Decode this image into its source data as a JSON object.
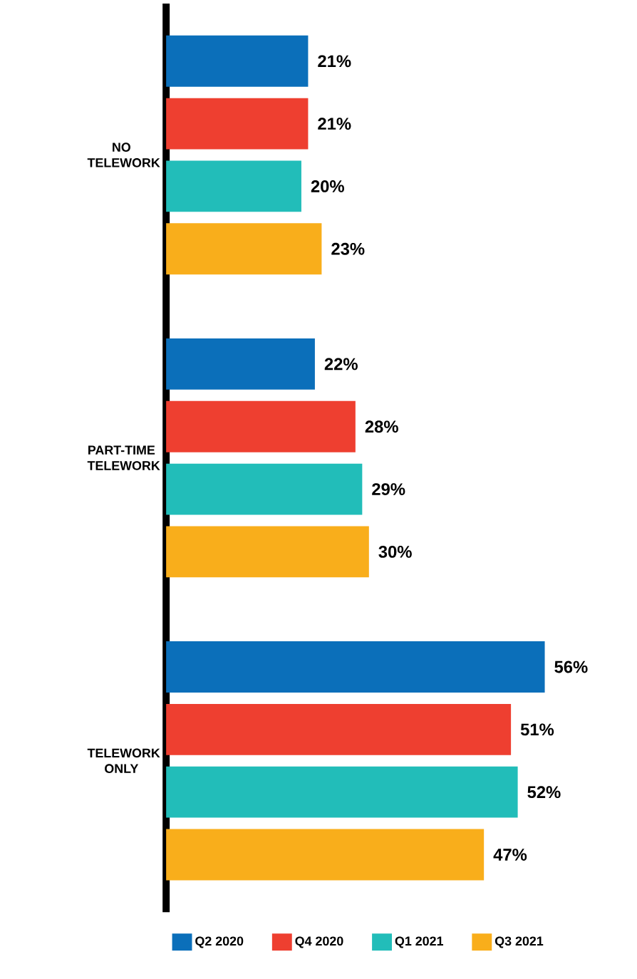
{
  "chart_data": {
    "type": "bar",
    "orientation": "horizontal",
    "categories": [
      "NO TELEWORK",
      "PART-TIME TELEWORK",
      "TELEWORK ONLY"
    ],
    "series": [
      {
        "name": "Q2 2020",
        "color": "#0b6fba",
        "values": [
          21,
          22,
          56
        ],
        "value_labels": [
          "21%",
          "22%",
          "56%"
        ]
      },
      {
        "name": "Q4 2020",
        "color": "#ee3f30",
        "values": [
          21,
          28,
          51
        ],
        "value_labels": [
          "21%",
          "28%",
          "51%"
        ]
      },
      {
        "name": "Q1 2021",
        "color": "#22bdb9",
        "values": [
          20,
          29,
          52
        ],
        "value_labels": [
          "20%",
          "29%",
          "52%"
        ]
      },
      {
        "name": "Q3 2021",
        "color": "#f9ae1b",
        "values": [
          23,
          30,
          47
        ],
        "value_labels": [
          "23%",
          "30%",
          "47%"
        ]
      }
    ],
    "legend": "bottom"
  }
}
